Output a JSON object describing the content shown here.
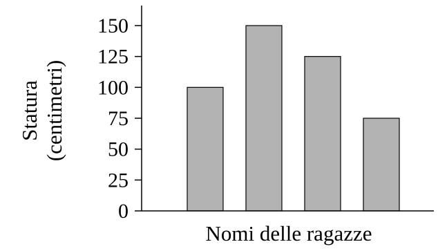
{
  "chart_data": {
    "type": "bar",
    "title": "",
    "xlabel": "Nomi delle ragazze",
    "ylabel_lines": [
      "Statura",
      "(centimetri)"
    ],
    "categories": [
      "",
      "",
      "",
      ""
    ],
    "values": [
      100,
      150,
      125,
      75
    ],
    "ylim": [
      0,
      150
    ],
    "yticks": [
      0,
      25,
      50,
      75,
      100,
      125,
      150
    ],
    "bar_color": "#b3b3b3",
    "bar_edge_color": "#000000",
    "grid": false,
    "legend": "none"
  }
}
